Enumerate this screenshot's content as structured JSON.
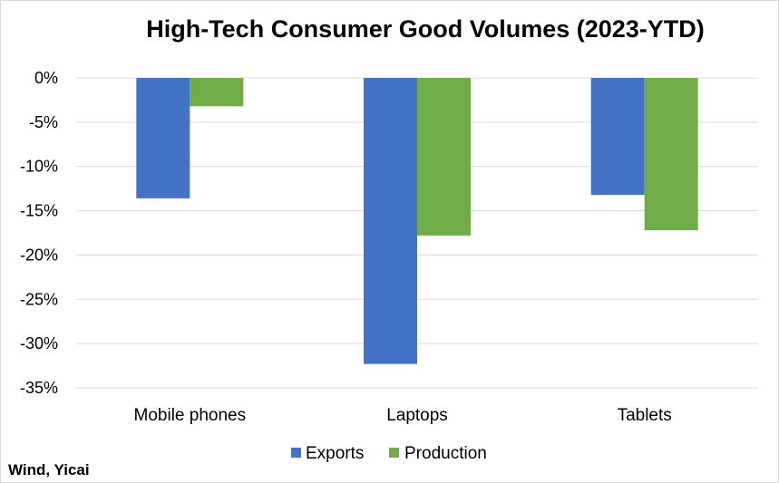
{
  "source_note": "Wind, Yicai",
  "chart_data": {
    "type": "bar",
    "title": "High-Tech Consumer Good Volumes (2023-YTD)",
    "xlabel": "",
    "ylabel": "",
    "categories": [
      "Mobile phones",
      "Laptops",
      "Tablets"
    ],
    "series": [
      {
        "name": "Exports",
        "color": "#4472c4",
        "values": [
          -13.6,
          -32.3,
          -13.2
        ]
      },
      {
        "name": "Production",
        "color": "#70ad47",
        "values": [
          -3.2,
          -17.8,
          -17.2
        ]
      }
    ],
    "ylim": [
      -35,
      0
    ],
    "yticks": [
      0,
      -5,
      -10,
      -15,
      -20,
      -25,
      -30,
      -35
    ],
    "ytick_labels": [
      "0%",
      "-5%",
      "-10%",
      "-15%",
      "-20%",
      "-25%",
      "-30%",
      "-35%"
    ],
    "grid": true,
    "legend_position": "bottom"
  }
}
